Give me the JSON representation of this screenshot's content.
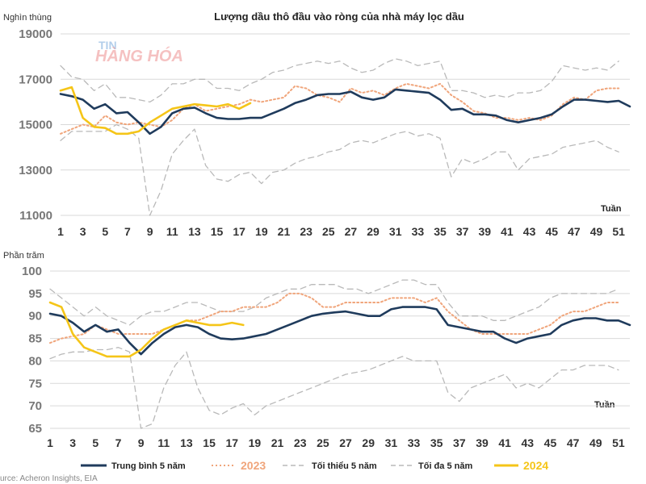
{
  "source": "urce: Acheron Insights, EIA",
  "watermark": {
    "top": "TIN",
    "bottom": "HÀNG HÓA"
  },
  "legend": [
    {
      "name": "Trung bình 5 năm",
      "color": "#1f3b5c",
      "style": "solid"
    },
    {
      "name": "2023",
      "color": "#f0a57b",
      "style": "dotted"
    },
    {
      "name": "Tối thiểu 5 năm",
      "color": "#b9b9b9",
      "style": "dashed"
    },
    {
      "name": "Tối đa 5 năm",
      "color": "#b9b9b9",
      "style": "dashed"
    },
    {
      "name": "2024",
      "color": "#f5c518",
      "style": "solid"
    }
  ],
  "chart_data": [
    {
      "type": "line",
      "title": "Lượng dầu thô đầu vào ròng của nhà máy lọc dầu",
      "ylabel": "Nghìn thùng",
      "xlabel": "Tuần",
      "ylim": [
        11000,
        19000
      ],
      "yticks": [
        11000,
        13000,
        15000,
        17000,
        19000
      ],
      "ytick_labels": [
        "11000",
        "13000",
        "15000",
        "17000",
        "19000"
      ],
      "xlim": [
        1,
        52
      ],
      "xticks": [
        1,
        3,
        5,
        7,
        9,
        11,
        13,
        15,
        17,
        19,
        21,
        23,
        25,
        27,
        29,
        31,
        33,
        35,
        37,
        39,
        41,
        43,
        45,
        47,
        49,
        51
      ],
      "grid": true,
      "series": [
        {
          "name": "Tối đa 5 năm",
          "values": [
            17600,
            17100,
            17000,
            16500,
            16800,
            16200,
            16200,
            16100,
            16000,
            16300,
            16800,
            16800,
            17000,
            17000,
            16600,
            16600,
            16500,
            16800,
            17000,
            17300,
            17400,
            17600,
            17700,
            17800,
            17700,
            17800,
            17500,
            17300,
            17400,
            17700,
            17900,
            17800,
            17600,
            17700,
            17800,
            16500,
            16500,
            16400,
            16200,
            16300,
            16200,
            16400,
            16400,
            16500,
            16900,
            17600,
            17500,
            17400,
            17500,
            17400,
            17800
          ]
        },
        {
          "name": "Tối thiểu 5 năm",
          "values": [
            14300,
            14700,
            14700,
            14700,
            14700,
            15000,
            14800,
            14400,
            11000,
            12100,
            13700,
            14300,
            14800,
            13200,
            12600,
            12500,
            12800,
            12900,
            12400,
            12900,
            13000,
            13300,
            13500,
            13600,
            13800,
            13900,
            14200,
            14300,
            14200,
            14400,
            14600,
            14700,
            14500,
            14600,
            14400,
            12700,
            13500,
            13300,
            13500,
            13800,
            13800,
            13000,
            13500,
            13600,
            13700,
            14000,
            14100,
            14200,
            14300,
            14000,
            13800
          ]
        },
        {
          "name": "2023",
          "values": [
            14600,
            14800,
            15000,
            14900,
            15400,
            15100,
            15000,
            15100,
            15000,
            14900,
            15200,
            15700,
            15900,
            15600,
            15700,
            15800,
            15900,
            16100,
            16000,
            16100,
            16200,
            16700,
            16600,
            16300,
            16200,
            16000,
            16600,
            16400,
            16500,
            16300,
            16600,
            16800,
            16700,
            16600,
            16800,
            16300,
            16000,
            15600,
            15500,
            15300,
            15300,
            15200,
            15300,
            15200,
            15400,
            15900,
            16200,
            16100,
            16500,
            16600,
            16600
          ]
        },
        {
          "name": "Trung bình 5 năm",
          "values": [
            16350,
            16250,
            16100,
            15700,
            15900,
            15500,
            15550,
            15100,
            14600,
            14900,
            15500,
            15700,
            15750,
            15500,
            15300,
            15250,
            15250,
            15300,
            15300,
            15500,
            15700,
            15950,
            16100,
            16300,
            16350,
            16350,
            16450,
            16200,
            16100,
            16200,
            16550,
            16500,
            16450,
            16400,
            16100,
            15650,
            15700,
            15450,
            15450,
            15400,
            15200,
            15100,
            15200,
            15300,
            15450,
            15800,
            16100,
            16100,
            16050,
            16000,
            16050,
            15800
          ]
        },
        {
          "name": "2024",
          "values": [
            16500,
            16650,
            15300,
            14900,
            14850,
            14600,
            14600,
            14700,
            15100,
            15400,
            15700,
            15800,
            15900,
            15850,
            15800,
            15900,
            15700,
            15950
          ]
        }
      ]
    },
    {
      "type": "line",
      "ylabel": "Phần trăm",
      "xlabel": "Tuần",
      "ylim": [
        65,
        100
      ],
      "yticks": [
        65,
        70,
        75,
        80,
        85,
        90,
        95,
        100
      ],
      "ytick_labels": [
        "65",
        "70",
        "75",
        "80",
        "85",
        "90",
        "95",
        "100"
      ],
      "xlim": [
        1,
        52
      ],
      "xticks": [
        1,
        3,
        5,
        7,
        9,
        11,
        13,
        15,
        17,
        19,
        21,
        23,
        25,
        27,
        29,
        31,
        33,
        35,
        37,
        39,
        41,
        43,
        45,
        47,
        49,
        51
      ],
      "grid": true,
      "series": [
        {
          "name": "Tối đa 5 năm",
          "values": [
            96,
            94,
            92,
            90,
            92,
            90,
            89,
            88,
            90,
            91,
            91,
            92,
            93,
            93,
            92,
            91,
            91,
            91,
            92,
            94,
            95,
            96,
            96,
            97,
            97,
            97,
            96,
            96,
            95,
            96,
            97,
            98,
            98,
            97,
            97,
            93,
            90,
            90,
            90,
            89,
            89,
            90,
            91,
            92,
            94,
            95,
            95,
            95,
            95,
            95,
            96
          ]
        },
        {
          "name": "Tối thiểu 5 năm",
          "values": [
            80.5,
            81.5,
            82,
            82,
            82.5,
            82.5,
            83,
            82,
            64,
            66,
            74,
            79,
            82,
            74,
            69,
            68,
            69.5,
            70.5,
            68,
            70,
            71,
            72,
            73,
            74,
            75,
            76,
            77,
            77.5,
            78,
            79,
            80,
            81,
            80,
            80,
            80,
            73,
            71,
            74,
            75,
            76,
            77,
            74,
            75,
            74,
            76,
            78,
            78,
            79,
            79,
            79,
            78
          ]
        },
        {
          "name": "2023",
          "values": [
            84,
            85,
            85.5,
            86,
            88,
            87,
            86,
            86,
            86,
            86,
            87,
            88,
            89,
            89,
            90,
            91,
            91,
            92,
            92,
            92,
            93,
            95,
            95,
            94,
            92,
            92,
            93,
            93,
            93,
            93,
            94,
            94,
            94,
            93,
            94,
            91,
            89,
            87,
            86,
            86,
            86,
            86,
            86,
            87,
            88,
            90,
            91,
            91,
            92,
            93,
            93
          ]
        },
        {
          "name": "Trung bình 5 năm",
          "values": [
            90.5,
            90,
            88.5,
            86.5,
            88,
            86.5,
            87,
            84,
            81.5,
            84,
            86,
            87.5,
            88,
            87.5,
            86,
            85,
            84.8,
            85,
            85.5,
            86,
            87,
            88,
            89,
            90,
            90.5,
            90.8,
            91,
            90.5,
            90,
            90,
            91.5,
            92,
            92,
            92,
            91.5,
            88,
            87.5,
            87,
            86.5,
            86.5,
            85,
            84,
            85,
            85.5,
            86,
            88,
            89,
            89.5,
            89.5,
            89,
            89,
            88
          ]
        },
        {
          "name": "2024",
          "values": [
            93,
            92,
            86,
            83,
            82,
            81,
            81,
            81,
            82.5,
            85,
            87,
            88,
            89,
            88.5,
            88,
            88,
            88.5,
            88
          ]
        }
      ]
    }
  ]
}
